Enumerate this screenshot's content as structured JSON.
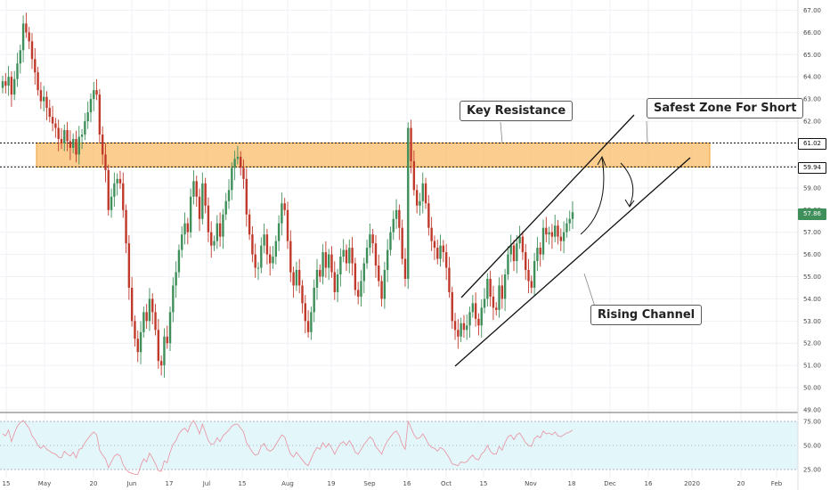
{
  "colors": {
    "up": "#3f8f5b",
    "down": "#c0392b",
    "resistance_fill": "#f9be6a",
    "resistance_border": "#f0a030",
    "rsi_line": "#e89aa6",
    "rsi_band": "#e3f7fb",
    "grid": "#eef1f5"
  },
  "price_tags": {
    "resistance_top": "61.02",
    "resistance_bottom": "59.94",
    "last_price": "57.86"
  },
  "annotations": {
    "key_resistance": "Key Resistance",
    "safest_zone": "Safest Zone For Short",
    "rising_channel": "Rising Channel"
  },
  "chart_data": {
    "type": "candlestick",
    "title": "",
    "y_ticks": [
      "67.00",
      "66.00",
      "65.00",
      "64.00",
      "63.00",
      "62.00",
      "61.00",
      "60.00",
      "59.00",
      "58.00",
      "57.00",
      "56.00",
      "55.00",
      "54.00",
      "53.00",
      "52.00",
      "51.00",
      "50.00",
      "49.00"
    ],
    "x_ticks": [
      "15",
      "May",
      "20",
      "Jun",
      "17",
      "Jul",
      "15",
      "Aug",
      "19",
      "Sep",
      "16",
      "Oct",
      "15",
      "Nov",
      "18",
      "Dec",
      "16",
      "2020",
      "20",
      "Feb"
    ],
    "ylim": [
      49.0,
      67.3
    ],
    "resistance_zone": [
      59.94,
      61.02
    ],
    "last_price": 57.86,
    "closes": [
      63.8,
      63.6,
      64.0,
      63.2,
      63.9,
      64.6,
      65.2,
      66.4,
      66.0,
      65.6,
      64.8,
      64.2,
      63.4,
      62.9,
      63.1,
      62.6,
      62.2,
      61.9,
      61.7,
      61.2,
      61.0,
      61.6,
      61.1,
      60.8,
      61.2,
      60.5,
      61.3,
      61.4,
      62.0,
      62.4,
      63.0,
      63.4,
      63.2,
      61.4,
      60.5,
      59.8,
      58.0,
      58.6,
      59.2,
      59.4,
      59.2,
      58.0,
      56.5,
      54.5,
      53.0,
      52.2,
      51.6,
      52.5,
      53.4,
      53.0,
      54.0,
      53.4,
      52.6,
      51.2,
      51.0,
      52.3,
      52.0,
      53.4,
      54.6,
      55.2,
      56.2,
      56.9,
      57.4,
      57.0,
      58.6,
      59.3,
      58.6,
      57.6,
      59.2,
      58.2,
      57.0,
      56.4,
      56.6,
      57.4,
      56.8,
      57.8,
      58.4,
      58.9,
      59.9,
      60.3,
      60.4,
      59.9,
      59.4,
      57.8,
      56.9,
      56.0,
      55.4,
      55.4,
      56.4,
      56.9,
      56.0,
      55.6,
      55.9,
      56.6,
      57.4,
      58.3,
      58.0,
      56.6,
      55.2,
      54.6,
      55.3,
      54.6,
      53.8,
      53.0,
      52.5,
      53.4,
      54.5,
      55.3,
      55.0,
      56.1,
      55.4,
      56.0,
      55.2,
      54.3,
      55.1,
      55.9,
      56.2,
      55.6,
      56.3,
      55.6,
      54.4,
      54.1,
      54.8,
      55.6,
      56.3,
      56.9,
      56.5,
      55.5,
      54.8,
      54.0,
      55.3,
      56.2,
      57.0,
      57.6,
      58.0,
      57.2,
      55.8,
      54.9,
      61.7,
      60.2,
      58.9,
      58.2,
      58.4,
      59.2,
      58.3,
      57.2,
      56.6,
      56.3,
      55.8,
      56.4,
      56.1,
      55.4,
      54.3,
      53.0,
      52.6,
      52.3,
      52.9,
      52.6,
      52.8,
      53.4,
      53.8,
      53.1,
      52.8,
      53.6,
      54.0,
      54.9,
      54.1,
      53.6,
      53.5,
      54.6,
      54.0,
      55.1,
      56.0,
      56.4,
      55.7,
      56.5,
      56.8,
      56.1,
      55.3,
      54.8,
      54.5,
      55.7,
      56.3,
      56.0,
      57.2,
      56.9,
      57.0,
      56.8,
      57.3,
      56.8,
      56.6,
      57.0,
      57.4,
      57.6,
      57.9
    ],
    "rsi": {
      "levels": [
        25.0,
        50.0,
        75.0
      ],
      "y_ticks": [
        "75.00",
        "50.00",
        "25.00"
      ],
      "values": [
        62,
        60,
        66,
        54,
        63,
        70,
        74,
        76,
        72,
        68,
        60,
        56,
        50,
        47,
        50,
        46,
        44,
        42,
        41,
        38,
        37,
        44,
        41,
        39,
        43,
        37,
        46,
        47,
        53,
        57,
        61,
        64,
        61,
        45,
        40,
        36,
        27,
        33,
        39,
        41,
        39,
        30,
        25,
        22,
        21,
        20,
        20,
        29,
        36,
        33,
        42,
        37,
        31,
        24,
        23,
        34,
        32,
        43,
        51,
        55,
        62,
        66,
        68,
        64,
        72,
        76,
        70,
        62,
        72,
        64,
        55,
        51,
        52,
        58,
        54,
        60,
        63,
        66,
        70,
        72,
        72,
        68,
        64,
        53,
        48,
        43,
        40,
        41,
        49,
        52,
        46,
        44,
        46,
        51,
        56,
        61,
        59,
        49,
        41,
        38,
        43,
        39,
        35,
        31,
        29,
        36,
        43,
        48,
        46,
        53,
        48,
        52,
        47,
        41,
        47,
        52,
        54,
        50,
        55,
        50,
        43,
        41,
        46,
        51,
        55,
        59,
        56,
        49,
        45,
        41,
        49,
        55,
        59,
        63,
        65,
        60,
        51,
        46,
        75,
        68,
        61,
        57,
        58,
        62,
        57,
        51,
        48,
        47,
        44,
        48,
        46,
        42,
        37,
        31,
        30,
        29,
        33,
        32,
        33,
        37,
        40,
        36,
        35,
        41,
        44,
        50,
        44,
        41,
        41,
        49,
        45,
        53,
        59,
        61,
        56,
        61,
        63,
        58,
        53,
        50,
        49,
        57,
        60,
        58,
        65,
        62,
        63,
        61,
        64,
        60,
        59,
        61,
        63,
        64,
        66
      ]
    }
  }
}
